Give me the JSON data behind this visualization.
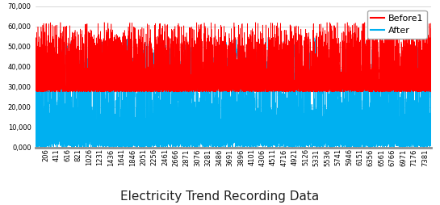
{
  "title": "Electricity Trend Recording Data",
  "legend_before": "Before1",
  "legend_after": "After",
  "color_before": "#FF0000",
  "color_after": "#00B0F0",
  "ylim": [
    0,
    70000
  ],
  "yticks": [
    0,
    10000,
    20000,
    30000,
    40000,
    50000,
    60000,
    70000
  ],
  "ytick_labels": [
    "0,000",
    "10,000",
    "20,000",
    "30,000",
    "40,000",
    "50,000",
    "60,000",
    "70,000"
  ],
  "xtick_labels": [
    "206",
    "411",
    "616",
    "821",
    "1026",
    "1231",
    "1436",
    "1641",
    "1846",
    "2051",
    "2256",
    "2461",
    "2666",
    "2871",
    "3076",
    "3281",
    "3486",
    "3691",
    "3896",
    "4101",
    "4306",
    "4511",
    "4716",
    "4921",
    "5126",
    "5331",
    "5536",
    "5741",
    "5946",
    "6151",
    "6356",
    "6561",
    "6766",
    "6971",
    "7176",
    "7381"
  ],
  "n_points": 7500,
  "seed": 42,
  "background_color": "#FFFFFF",
  "grid_color": "#C8C8C8",
  "title_fontsize": 11,
  "legend_fontsize": 8,
  "tick_fontsize": 6,
  "linewidth_before": 0.4,
  "linewidth_after": 0.4
}
